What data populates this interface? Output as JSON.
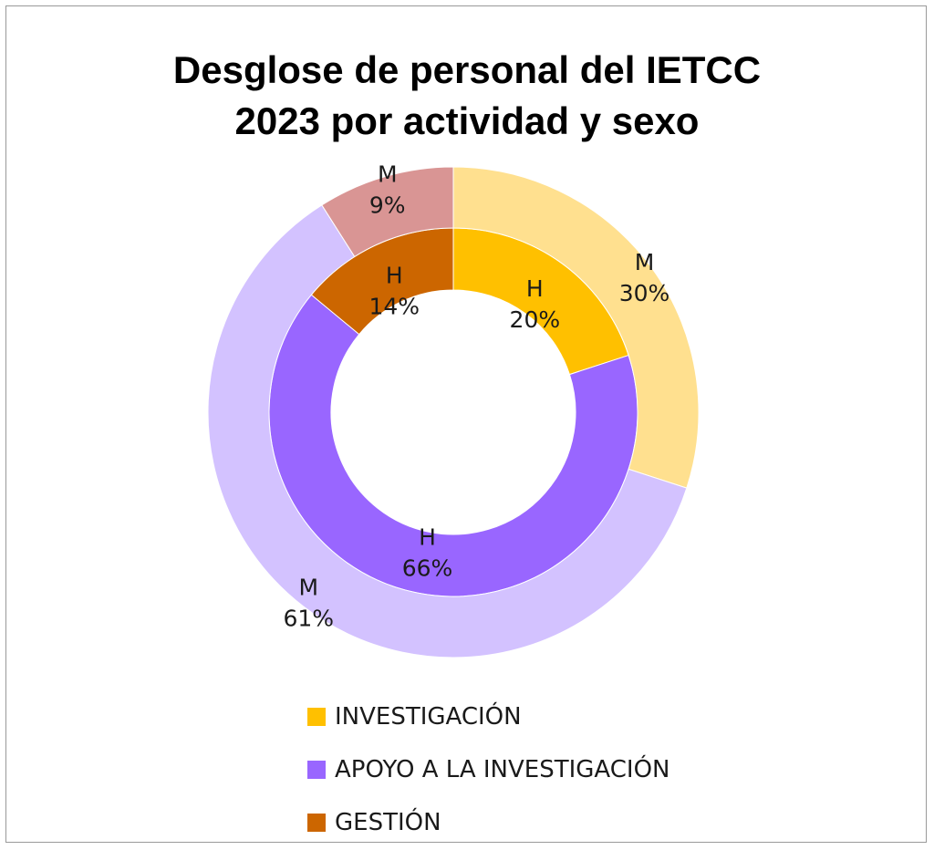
{
  "chart_data": {
    "type": "donut",
    "title_line1": "Desglose de personal del IETCC",
    "title_line2": "2023 por actividad y sexo",
    "categories": [
      "INVESTIGACIÓN",
      "APOYO A LA INVESTIGACIÓN",
      "GESTIÓN"
    ],
    "series": [
      {
        "ring": "inner",
        "labels": [
          "H",
          "H",
          "H"
        ],
        "values": [
          20,
          66,
          14
        ],
        "value_labels": [
          "20%",
          "66%",
          "14%"
        ],
        "colors": [
          "#FFC000",
          "#9966FF",
          "#CC6600"
        ]
      },
      {
        "ring": "outer",
        "labels": [
          "M",
          "M",
          "M"
        ],
        "values": [
          30,
          61,
          9
        ],
        "value_labels": [
          "30%",
          "61%",
          "9%"
        ],
        "colors": [
          "#FFE08F",
          "#D3C2FF",
          "#D99594"
        ]
      }
    ],
    "legend": {
      "placement": "bottom",
      "items": [
        {
          "label": "INVESTIGACIÓN",
          "color": "#FFC000"
        },
        {
          "label": "APOYO A LA INVESTIGACIÓN",
          "color": "#9966FF"
        },
        {
          "label": "GESTIÓN",
          "color": "#CC6600"
        }
      ]
    }
  }
}
